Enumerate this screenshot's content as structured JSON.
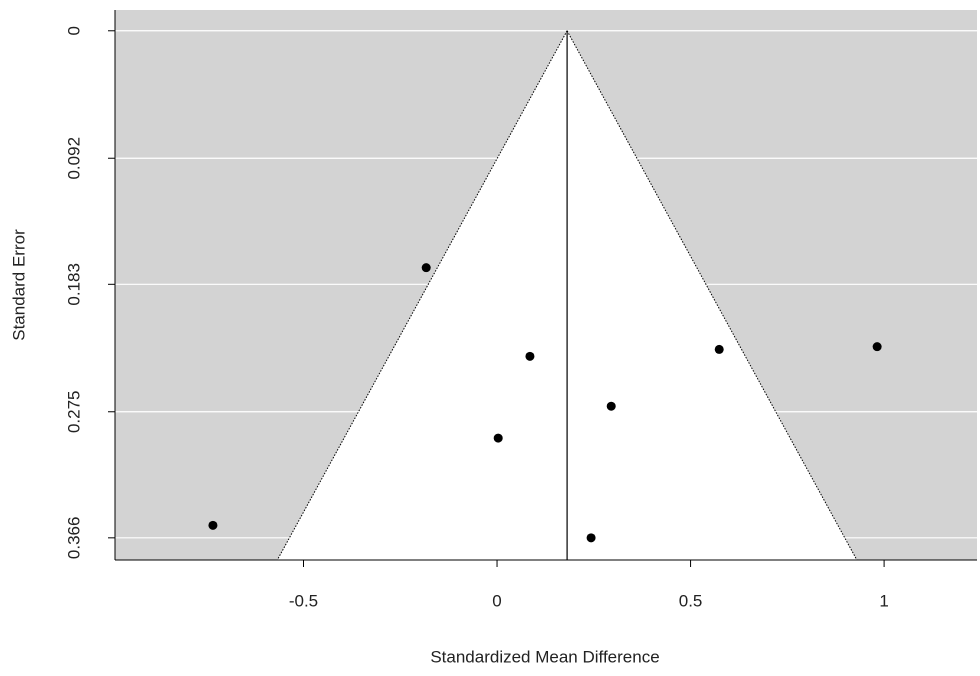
{
  "chart_data": {
    "type": "funnel",
    "x_label": "Standardized Mean Difference",
    "y_label": "Standard Error",
    "x": [
      -0.734,
      -0.183,
      0.085,
      0.003,
      0.295,
      0.574,
      0.982,
      0.243
    ],
    "values": [
      0.357,
      0.171,
      0.235,
      0.294,
      0.271,
      0.23,
      0.228,
      0.366
    ],
    "color": "#000000",
    "center": 0.181,
    "funnel_multiplier": 1.96,
    "xlim": [
      -0.987,
      1.24
    ],
    "ylim": [
      -0.015,
      0.382
    ],
    "y_reversed": true,
    "xticks": [
      -0.5,
      0,
      0.5,
      1
    ],
    "yticks": [
      0,
      0.092,
      0.183,
      0.275,
      0.366
    ],
    "background": "#d3d3d3",
    "grid": true
  }
}
